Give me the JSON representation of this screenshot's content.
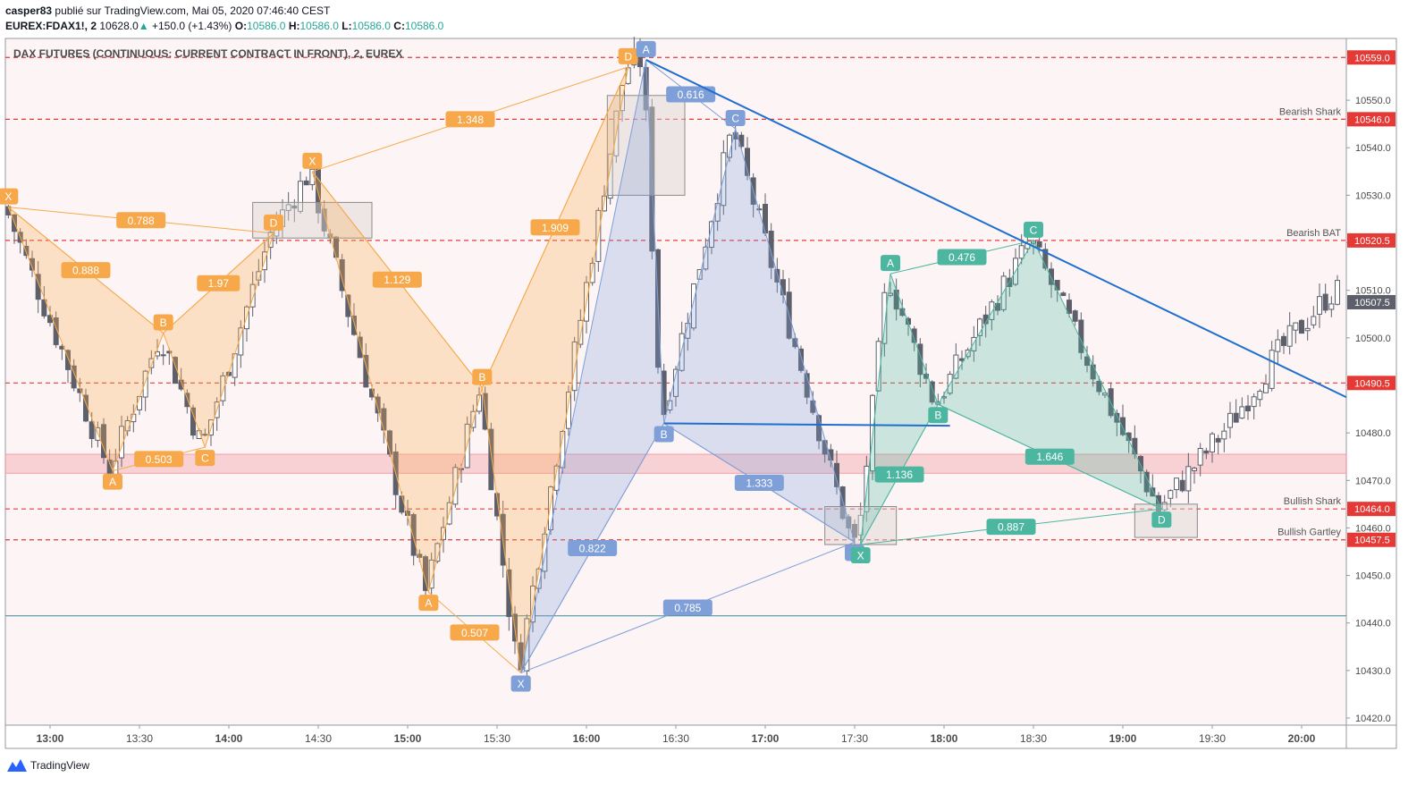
{
  "header": {
    "author": "casper83",
    "published_text": "publié sur TradingView.com, Mai 05, 2020 07:46:40 CEST",
    "symbol": "EUREX:FDAX1!, 2",
    "last": "10628.0",
    "change": "+150.0 (+1.43%)",
    "o_label": "O:",
    "o_value": "10586.0",
    "h_label": "H:",
    "h_value": "10586.0",
    "l_label": "L:",
    "l_value": "10586.0",
    "c_label": "C:",
    "c_value": "10586.0"
  },
  "brand": "TradingView",
  "chart_data": {
    "type": "candlestick",
    "title": "DAX FUTURES (CONTINUOUS: CURRENT CONTRACT IN FRONT), 2, EUREX",
    "x_ticks": [
      "13:00",
      "13:30",
      "14:00",
      "14:30",
      "15:00",
      "15:30",
      "16:00",
      "16:30",
      "17:00",
      "17:30",
      "18:00",
      "18:30",
      "19:00",
      "19:30",
      "20:00"
    ],
    "x_range": [
      "12:45",
      "20:15"
    ],
    "y_ticks": [
      "10550.0",
      "10540.0",
      "10530.0",
      "10520.0",
      "10510.0",
      "10500.0",
      "10490.0",
      "10480.0",
      "10470.0",
      "10460.0",
      "10450.0",
      "10440.0",
      "10430.0",
      "10420.0"
    ],
    "ylim": [
      10418.5,
      10563
    ],
    "price_lines": [
      {
        "price": 10559.0,
        "label": "10559.0",
        "color": "#e53935"
      },
      {
        "price": 10546.0,
        "label": "10546.0",
        "color": "#e53935",
        "name": "Bearish Shark"
      },
      {
        "price": 10520.5,
        "label": "10520.5",
        "color": "#e53935",
        "name": "Bearish BAT"
      },
      {
        "price": 10490.5,
        "label": "10490.5",
        "color": "#e53935"
      },
      {
        "price": 10464.0,
        "label": "10464.0",
        "color": "#e53935",
        "name": "Bullish Shark"
      },
      {
        "price": 10457.5,
        "label": "10457.5",
        "color": "#e53935",
        "name": "Bullish Gartley"
      }
    ],
    "current_price": {
      "price": 10507.5,
      "label": "10507.5"
    },
    "support_zone": [
      10471.5,
      10475.5
    ],
    "support_line": 10441.5,
    "trendlines": [
      {
        "from": [
          "16:20",
          10558.5
        ],
        "to": [
          "20:15",
          10487.5
        ]
      },
      {
        "from": [
          "16:26",
          10482.0
        ],
        "to": [
          "18:02",
          10481.5
        ]
      }
    ],
    "patterns": [
      {
        "color": "#f7a84a",
        "points": {
          "X": [
            "12:46",
            10527.5
          ],
          "A": [
            "13:21",
            10472.0
          ],
          "B": [
            "13:38",
            10501.0
          ],
          "C": [
            "13:52",
            10477.0
          ],
          "D": [
            "14:15",
            10522.0
          ]
        },
        "ratios": [
          "0.888",
          "0.503",
          "1.97",
          "0.788"
        ]
      },
      {
        "color": "#f7a84a",
        "points": {
          "X": [
            "14:28",
            10535.0
          ],
          "A": [
            "15:07",
            10446.5
          ],
          "B": [
            "15:25",
            10489.5
          ],
          "C": [
            "15:38",
            10429.5
          ],
          "D": [
            "16:14",
            10557.0
          ]
        },
        "ratios": [
          "1.129",
          "0.507",
          "1.909",
          "1.348"
        ]
      },
      {
        "color": "#7e9fd8",
        "points": {
          "X": [
            "15:38",
            10429.5
          ],
          "A": [
            "16:20",
            10558.5
          ],
          "B": [
            "16:26",
            10482.0
          ],
          "C": [
            "16:50",
            10544.0
          ],
          "D": [
            "17:30",
            10457.0
          ]
        },
        "ratios": [
          "0.822",
          "0.616",
          "1.333",
          "0.785"
        ]
      },
      {
        "color": "#4db6a0",
        "points": {
          "X": [
            "17:32",
            10456.5
          ],
          "A": [
            "17:42",
            10513.5
          ],
          "B": [
            "17:58",
            10486.0
          ],
          "C": [
            "18:30",
            10520.5
          ],
          "D": [
            "19:13",
            10464.0
          ]
        },
        "ratios": [
          "1.136",
          "0.476",
          "1.646",
          "0.887"
        ]
      }
    ],
    "boxes": [
      {
        "from": [
          "14:08",
          10528.5
        ],
        "to": [
          "14:48",
          10521.0
        ]
      },
      {
        "from": [
          "16:07",
          10551.0
        ],
        "to": [
          "16:33",
          10530.0
        ]
      },
      {
        "from": [
          "17:20",
          10464.5
        ],
        "to": [
          "17:44",
          10456.5
        ]
      },
      {
        "from": [
          "19:04",
          10465.0
        ],
        "to": [
          "19:25",
          10458.0
        ]
      }
    ]
  }
}
